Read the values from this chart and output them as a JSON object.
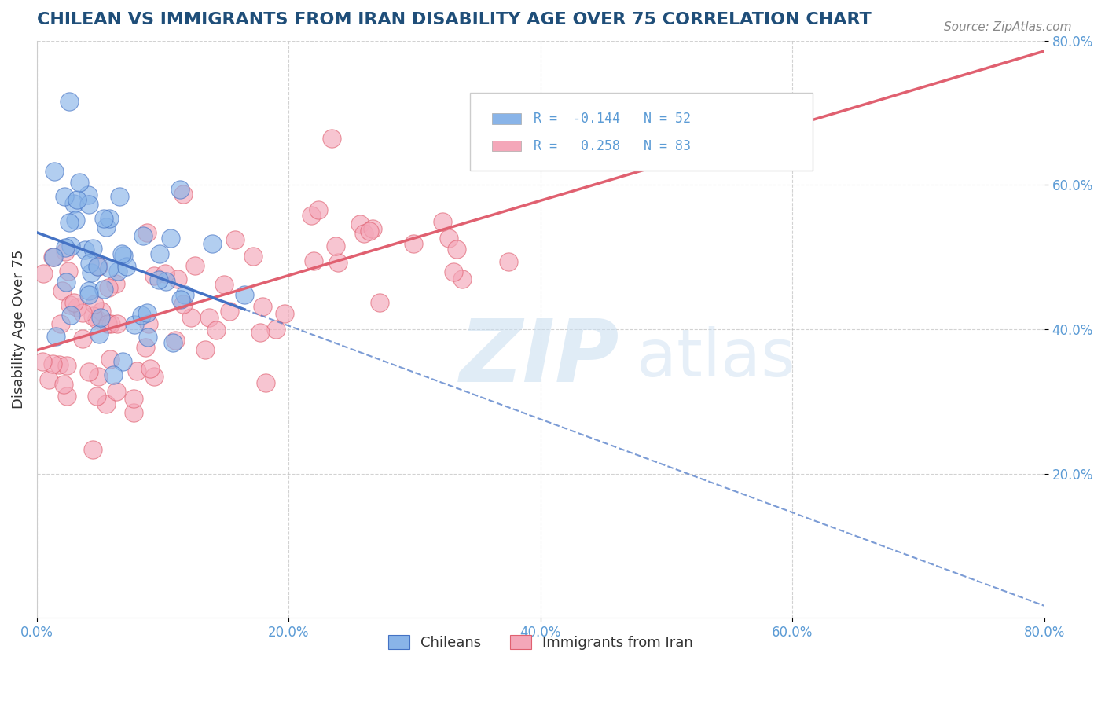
{
  "title": "CHILEAN VS IMMIGRANTS FROM IRAN DISABILITY AGE OVER 75 CORRELATION CHART",
  "source": "Source: ZipAtlas.com",
  "ylabel": "Disability Age Over 75",
  "xlabel": "",
  "xlim": [
    0.0,
    0.8
  ],
  "ylim": [
    0.0,
    0.8
  ],
  "xtick_labels": [
    "0.0%",
    "20.0%",
    "40.0%",
    "60.0%",
    "80.0%"
  ],
  "xtick_vals": [
    0.0,
    0.2,
    0.4,
    0.6,
    0.8
  ],
  "ytick_labels": [
    "20.0%",
    "40.0%",
    "60.0%",
    "80.0%"
  ],
  "ytick_vals": [
    0.2,
    0.4,
    0.6,
    0.8
  ],
  "legend_label1": "R =  -0.144   N = 52",
  "legend_label2": "R =   0.258   N = 83",
  "legend_group1": "Chileans",
  "legend_group2": "Immigrants from Iran",
  "color1": "#89b4e8",
  "color2": "#f4a7b9",
  "line_color1": "#4472c4",
  "line_color2": "#e06070",
  "R1": -0.144,
  "N1": 52,
  "R2": 0.258,
  "N2": 83,
  "title_color": "#1f4e79",
  "source_color": "#888888",
  "axis_color": "#5b9bd5",
  "grid_color": "#c0c0c0",
  "seed1": 42,
  "seed2": 99
}
